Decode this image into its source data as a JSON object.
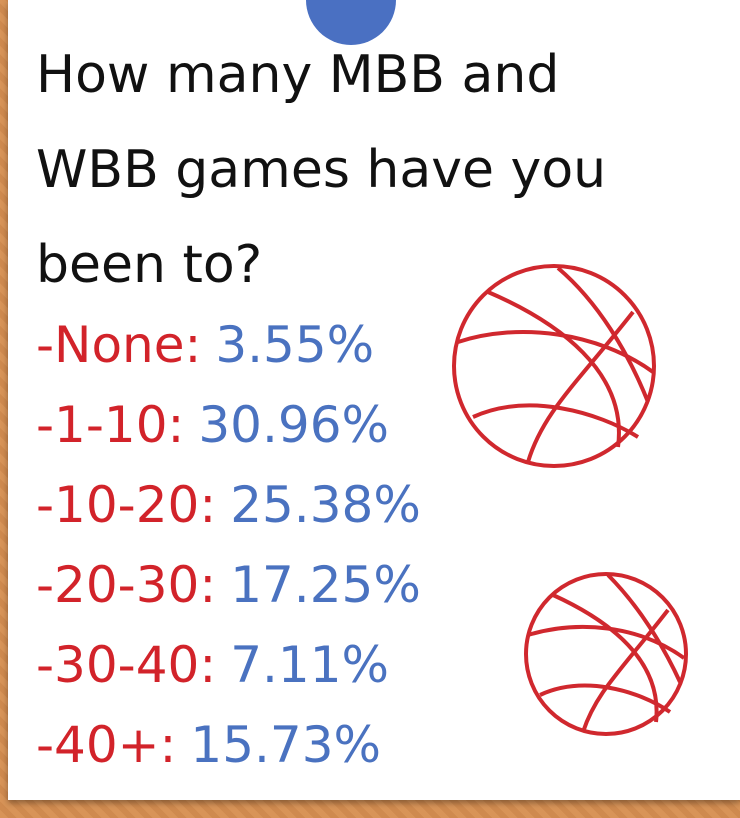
{
  "title": "How many MBB and WBB games have you been to?",
  "items": [
    {
      "label": "-None:",
      "value": "3.55%"
    },
    {
      "label": "-1-10:",
      "value": "30.96%"
    },
    {
      "label": "-10-20:",
      "value": "25.38%"
    },
    {
      "label": "-20-30:",
      "value": "17.25%"
    },
    {
      "label": "-30-40:",
      "value": "7.11%"
    },
    {
      "label": "-40+:",
      "value": "15.73%"
    }
  ]
}
